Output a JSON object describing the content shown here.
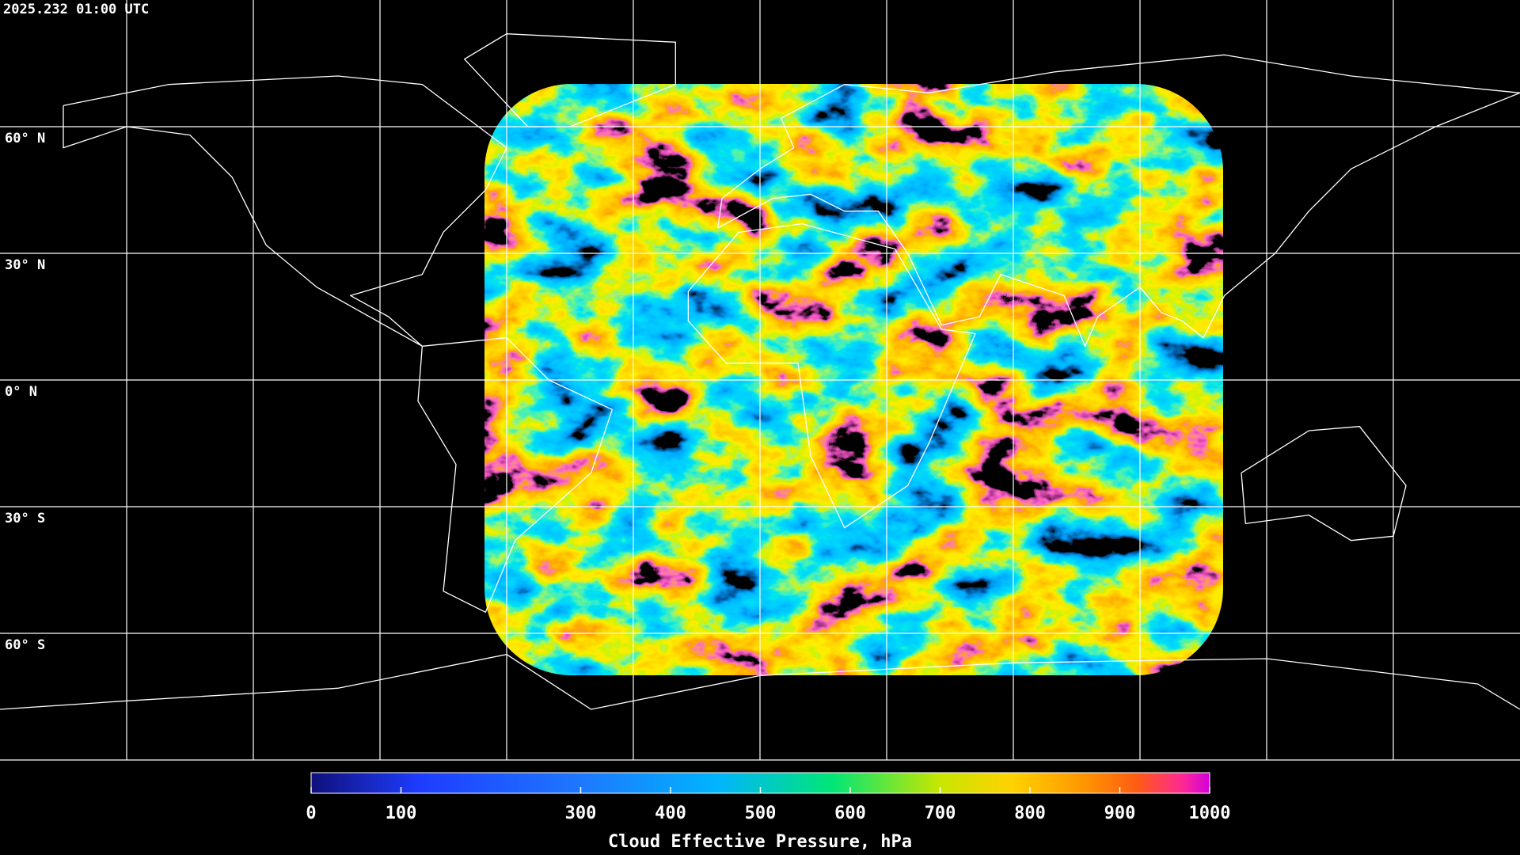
{
  "header": {
    "timestamp": "2025.232 01:00 UTC"
  },
  "map": {
    "lat_labels": [
      "60° N",
      "30° N",
      "0° N",
      "30° S",
      "60° S"
    ]
  },
  "colorbar": {
    "title": "Cloud Effective Pressure, hPa",
    "range": [
      0,
      1000
    ],
    "ticks": [
      0,
      100,
      300,
      400,
      500,
      600,
      700,
      800,
      900,
      1000
    ]
  }
}
